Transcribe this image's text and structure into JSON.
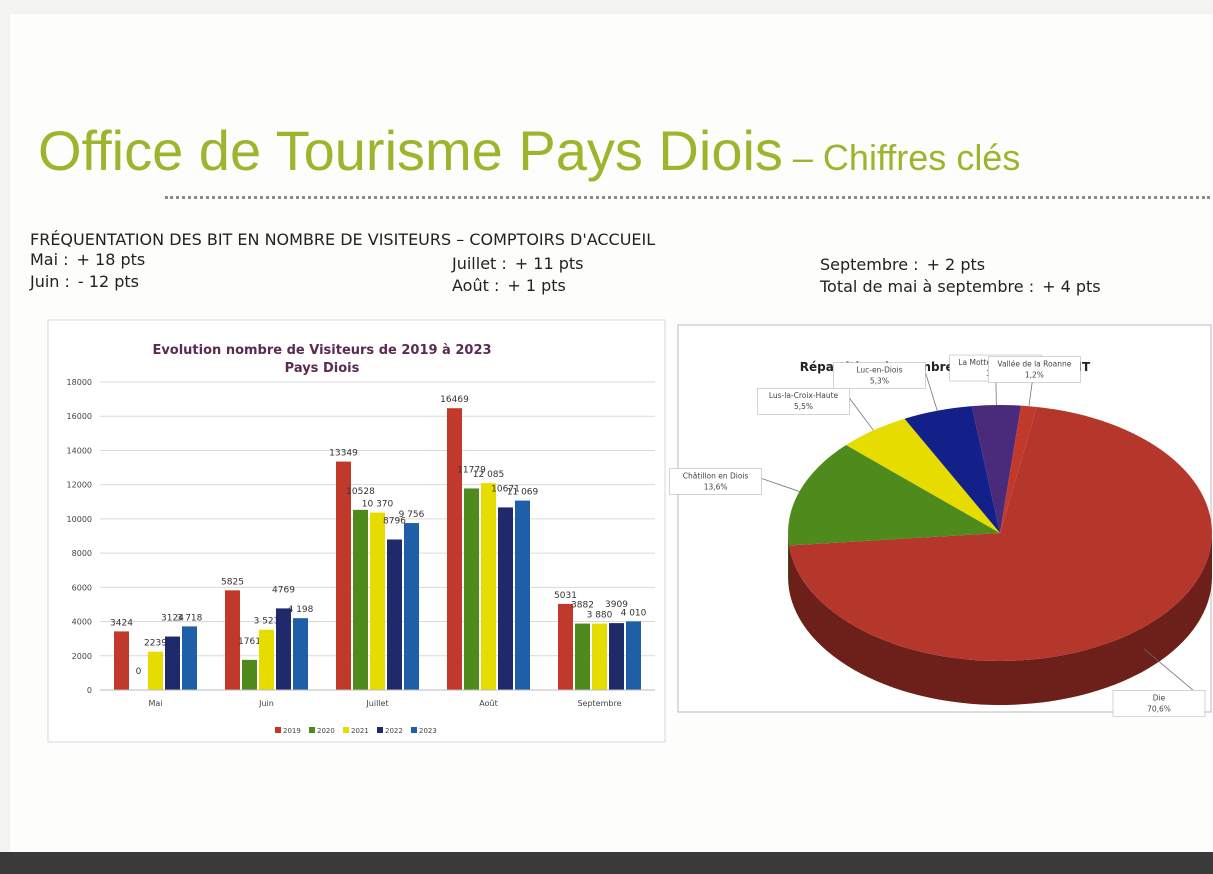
{
  "title": "Office de Tourisme Pays Diois",
  "subtitle": "– Chiffres clés",
  "section": "FRÉQUENTATION DES BIT EN NOMBRE DE VISITEURS – COMPTOIRS D'ACCUEIL",
  "stats": [
    {
      "label": "Mai :",
      "value": "+ 18 pts"
    },
    {
      "label": "Juin :",
      "value": "- 12 pts"
    },
    {
      "label": "Juillet :",
      "value": "+ 11 pts"
    },
    {
      "label": "Août :",
      "value": "+ 1 pts"
    },
    {
      "label": "Septembre :",
      "value": "+ 2 pts"
    },
    {
      "label": "Total de mai à septembre :",
      "value": "+ 4 pts"
    }
  ],
  "chart_data": [
    {
      "type": "bar",
      "title": "Evolution nombre de Visiteurs de 2019 à 2023",
      "subtitle": "Pays Diois",
      "categories": [
        "Mai",
        "Juin",
        "Juillet",
        "Août",
        "Septembre"
      ],
      "series": [
        {
          "name": "2019",
          "color": "#c0392b",
          "values": [
            3424,
            5825,
            13349,
            16469,
            5031
          ]
        },
        {
          "name": "2020",
          "color": "#4e8a1c",
          "values": [
            0,
            1761,
            10528,
            11779,
            3882
          ]
        },
        {
          "name": "2021",
          "color": "#e6dc00",
          "values": [
            2239,
            3523,
            10370,
            12085,
            3880
          ],
          "value_labels": [
            "2239",
            "3 523",
            "10 370",
            "12 085",
            "3 880"
          ]
        },
        {
          "name": "2022",
          "color": "#1f2a6b",
          "values": [
            3124,
            4769,
            8796,
            10671,
            3909
          ]
        },
        {
          "name": "2023",
          "color": "#1f5fa8",
          "values": [
            3718,
            4198,
            9756,
            11069,
            4010
          ],
          "value_labels": [
            "3 718",
            "4 198",
            "9 756",
            "11 069",
            "4 010"
          ]
        }
      ],
      "ylim": [
        0,
        18000
      ],
      "yticks": [
        0,
        2000,
        4000,
        6000,
        8000,
        10000,
        12000,
        14000,
        16000,
        18000
      ],
      "grid": true,
      "legend": "bottom"
    },
    {
      "type": "pie",
      "title": "Répartition du nombre de visiteurs par BIT",
      "categories": [
        "Die",
        "Châtillon en Diois",
        "Lus-la-Croix-Haute",
        "Luc-en-Diois",
        "La Motte Chalancon",
        "Vallée de la Roanne"
      ],
      "values": [
        70.6,
        13.6,
        5.5,
        5.3,
        3.7,
        1.2
      ],
      "value_labels": [
        "70,6%",
        "13,6%",
        "5,5%",
        "5,3%",
        "3,7%",
        "1,2%"
      ],
      "colors": [
        "#b5362b",
        "#4e8a1c",
        "#e6dc00",
        "#14208a",
        "#4a2a7a",
        "#c0392b"
      ]
    }
  ]
}
